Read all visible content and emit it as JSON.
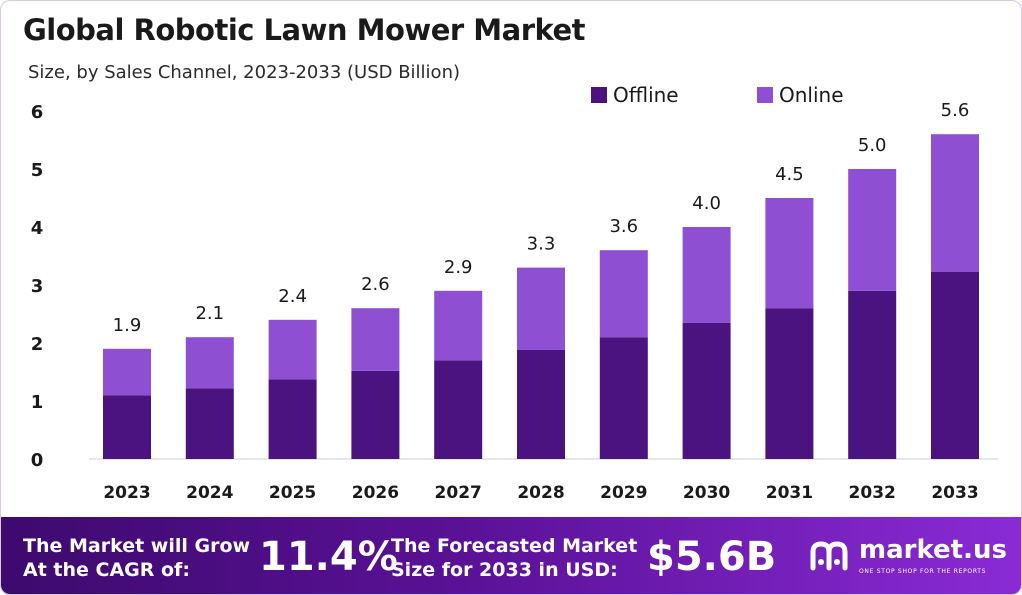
{
  "title": "Global Robotic Lawn Mower Market",
  "subtitle": "Size, by Sales Channel, 2023-2033 (USD Billion)",
  "colors": {
    "offline": "#4b137f",
    "online": "#8e4fd3",
    "footer_start": "#3d0a6e",
    "footer_end": "#8a2bd6"
  },
  "chart_data": {
    "type": "bar",
    "stacked": true,
    "categories": [
      "2023",
      "2024",
      "2025",
      "2026",
      "2027",
      "2028",
      "2029",
      "2030",
      "2031",
      "2032",
      "2033"
    ],
    "series": [
      {
        "name": "Offline",
        "values": [
          1.1,
          1.22,
          1.37,
          1.52,
          1.7,
          1.88,
          2.1,
          2.35,
          2.6,
          2.9,
          3.23
        ]
      },
      {
        "name": "Online",
        "values": [
          0.8,
          0.88,
          1.03,
          1.08,
          1.2,
          1.42,
          1.5,
          1.65,
          1.9,
          2.1,
          2.37
        ]
      }
    ],
    "totals": [
      1.9,
      2.1,
      2.4,
      2.6,
      2.9,
      3.3,
      3.6,
      4.0,
      4.5,
      5.0,
      5.6
    ],
    "total_labels": [
      "1.9",
      "2.1",
      "2.4",
      "2.6",
      "2.9",
      "3.3",
      "3.6",
      "4.0",
      "4.5",
      "5.0",
      "5.6"
    ],
    "yticks": [
      "0",
      "1",
      "2",
      "3",
      "4",
      "5",
      "6"
    ],
    "ylim": [
      0,
      6
    ],
    "xlabel": "",
    "ylabel": "",
    "legend_position": "top-right",
    "grid": false
  },
  "footer": {
    "cagr_label_line1": "The Market will Grow",
    "cagr_label_line2": "At the CAGR of:",
    "cagr_value": "11.4%",
    "forecast_label_line1": "The Forecasted Market",
    "forecast_label_line2": "Size for 2033 in USD:",
    "forecast_value": "$5.6B",
    "brand_name": "market.us",
    "brand_tagline": "ONE STOP SHOP FOR THE REPORTS",
    "brand_icon": "market-us-logo-icon"
  }
}
